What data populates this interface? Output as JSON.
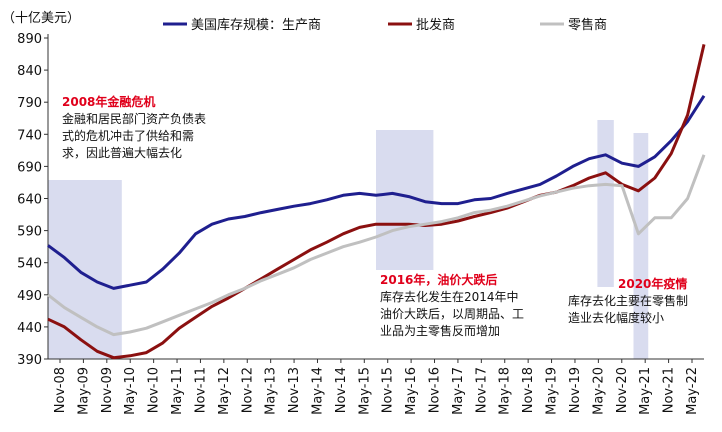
{
  "chart_data": {
    "type": "line",
    "unit_label": "（十亿美元）",
    "ylim": [
      390,
      890
    ],
    "yticks": [
      390,
      440,
      490,
      540,
      590,
      640,
      690,
      740,
      790,
      840,
      890
    ],
    "xtick_labels": [
      "Nov-08",
      "May-09",
      "Nov-09",
      "May-10",
      "Nov-10",
      "May-11",
      "Nov-11",
      "May-12",
      "Nov-12",
      "May-13",
      "Nov-13",
      "May-14",
      "Nov-14",
      "May-15",
      "Nov-15",
      "May-16",
      "Nov-16",
      "May-17",
      "Nov-17",
      "May-18",
      "Nov-18",
      "May-19",
      "Nov-19",
      "May-20",
      "Nov-20",
      "May-21",
      "Nov-21",
      "May-22"
    ],
    "legend_position": "top",
    "series": [
      {
        "name": "美国库存规模：生产商",
        "color": "#1f1f8f",
        "points": [
          [
            0,
            567
          ],
          [
            1,
            548
          ],
          [
            2,
            525
          ],
          [
            3,
            510
          ],
          [
            4,
            500
          ],
          [
            5,
            505
          ],
          [
            6,
            510
          ],
          [
            7,
            530
          ],
          [
            8,
            555
          ],
          [
            9,
            585
          ],
          [
            10,
            600
          ],
          [
            11,
            608
          ],
          [
            12,
            612
          ],
          [
            13,
            618
          ],
          [
            14,
            623
          ],
          [
            15,
            628
          ],
          [
            16,
            632
          ],
          [
            17,
            638
          ],
          [
            18,
            645
          ],
          [
            19,
            648
          ],
          [
            20,
            645
          ],
          [
            21,
            648
          ],
          [
            22,
            643
          ],
          [
            23,
            635
          ],
          [
            24,
            632
          ],
          [
            25,
            632
          ],
          [
            26,
            638
          ],
          [
            27,
            640
          ],
          [
            28,
            648
          ],
          [
            29,
            655
          ],
          [
            30,
            662
          ],
          [
            31,
            675
          ],
          [
            32,
            690
          ],
          [
            33,
            702
          ],
          [
            34,
            708
          ],
          [
            35,
            695
          ],
          [
            36,
            690
          ],
          [
            37,
            705
          ],
          [
            38,
            730
          ],
          [
            39,
            760
          ],
          [
            40,
            800
          ]
        ]
      },
      {
        "name": "批发商",
        "color": "#8b1010",
        "points": [
          [
            0,
            452
          ],
          [
            1,
            440
          ],
          [
            2,
            420
          ],
          [
            3,
            402
          ],
          [
            4,
            392
          ],
          [
            5,
            395
          ],
          [
            6,
            400
          ],
          [
            7,
            415
          ],
          [
            8,
            438
          ],
          [
            9,
            455
          ],
          [
            10,
            472
          ],
          [
            11,
            485
          ],
          [
            12,
            500
          ],
          [
            13,
            515
          ],
          [
            14,
            530
          ],
          [
            15,
            545
          ],
          [
            16,
            560
          ],
          [
            17,
            572
          ],
          [
            18,
            585
          ],
          [
            19,
            595
          ],
          [
            20,
            600
          ],
          [
            21,
            600
          ],
          [
            22,
            600
          ],
          [
            23,
            598
          ],
          [
            24,
            600
          ],
          [
            25,
            605
          ],
          [
            26,
            612
          ],
          [
            27,
            618
          ],
          [
            28,
            625
          ],
          [
            29,
            635
          ],
          [
            30,
            645
          ],
          [
            31,
            650
          ],
          [
            32,
            660
          ],
          [
            33,
            672
          ],
          [
            34,
            680
          ],
          [
            35,
            662
          ],
          [
            36,
            652
          ],
          [
            37,
            672
          ],
          [
            38,
            710
          ],
          [
            39,
            770
          ],
          [
            40,
            880
          ]
        ]
      },
      {
        "name": "零售商",
        "color": "#c0c0c0",
        "points": [
          [
            0,
            490
          ],
          [
            1,
            470
          ],
          [
            2,
            455
          ],
          [
            3,
            440
          ],
          [
            4,
            428
          ],
          [
            5,
            432
          ],
          [
            6,
            438
          ],
          [
            7,
            448
          ],
          [
            8,
            458
          ],
          [
            9,
            468
          ],
          [
            10,
            478
          ],
          [
            11,
            490
          ],
          [
            12,
            500
          ],
          [
            13,
            512
          ],
          [
            14,
            522
          ],
          [
            15,
            532
          ],
          [
            16,
            545
          ],
          [
            17,
            555
          ],
          [
            18,
            565
          ],
          [
            19,
            572
          ],
          [
            20,
            580
          ],
          [
            21,
            590
          ],
          [
            22,
            596
          ],
          [
            23,
            600
          ],
          [
            24,
            604
          ],
          [
            25,
            610
          ],
          [
            26,
            618
          ],
          [
            27,
            622
          ],
          [
            28,
            628
          ],
          [
            29,
            636
          ],
          [
            30,
            644
          ],
          [
            31,
            650
          ],
          [
            32,
            656
          ],
          [
            33,
            660
          ],
          [
            34,
            662
          ],
          [
            35,
            660
          ],
          [
            36,
            585
          ],
          [
            37,
            610
          ],
          [
            38,
            610
          ],
          [
            39,
            640
          ],
          [
            40,
            708
          ]
        ]
      }
    ],
    "shaded_periods": [
      [
        0,
        4.5
      ],
      [
        20,
        23.5
      ],
      [
        33.5,
        34.5
      ],
      [
        35.7,
        36.6
      ]
    ],
    "annotations": [
      {
        "title": "2008年金融危机",
        "text": "金融和居民部门资产负债表式的危机冲击了供给和需求，因此普遍大幅去化"
      },
      {
        "title": "2016年，油价大跌后",
        "text": "库存去化发生在2014年中油价大跌后，以周期品、工业品为主零售反而增加"
      },
      {
        "title": "2020年疫情",
        "text": "库存去化主要在零售制造业去化幅度较小"
      }
    ]
  }
}
